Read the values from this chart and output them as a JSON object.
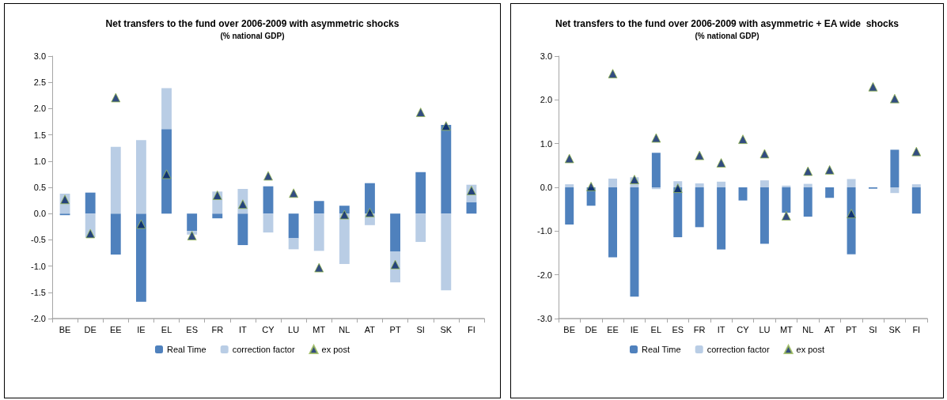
{
  "chart_data": [
    {
      "type": "bar",
      "title": "Net transfers to the fund over 2006-2009 with asymmetric shocks",
      "subtitle": "(% national GDP)",
      "categories": [
        "BE",
        "DE",
        "EE",
        "IE",
        "EL",
        "ES",
        "FR",
        "IT",
        "CY",
        "LU",
        "MT",
        "NL",
        "AT",
        "PT",
        "SI",
        "SK",
        "FI"
      ],
      "stacked": true,
      "ylim": [
        -2,
        3
      ],
      "yticks": [
        {
          "value": -2,
          "label": "-2.0"
        },
        {
          "value": -1.5,
          "label": "-1.5"
        },
        {
          "value": -1,
          "label": "-1.0"
        },
        {
          "value": -0.5,
          "label": "-0.5"
        },
        {
          "value": 0,
          "label": "0.0"
        },
        {
          "value": 0.5,
          "label": "0.5"
        },
        {
          "value": 1,
          "label": "1.0"
        },
        {
          "value": 1.5,
          "label": "1.5"
        },
        {
          "value": 2,
          "label": "2.0"
        },
        {
          "value": 2.5,
          "label": "2.5"
        },
        {
          "value": 3,
          "label": "3.0"
        }
      ],
      "grid": false,
      "legend": "bottom",
      "marker": "triangle",
      "series": [
        {
          "name": "Real Time",
          "color": "#4f81bd",
          "values": [
            -0.03,
            0.4,
            -0.78,
            -1.68,
            1.61,
            -0.33,
            -0.09,
            -0.6,
            0.52,
            -0.47,
            0.24,
            0.15,
            0.58,
            -0.72,
            0.79,
            1.69,
            0.22
          ]
        },
        {
          "name": "correction factor",
          "color": "#b9cde5",
          "values": [
            0.38,
            -0.45,
            1.27,
            1.4,
            0.78,
            -0.07,
            0.42,
            0.47,
            -0.36,
            -0.21,
            -0.71,
            -0.96,
            -0.22,
            -0.59,
            -0.54,
            -1.46,
            0.33
          ]
        },
        {
          "name": "ex post",
          "type": "scatter",
          "color": "#002060",
          "values": [
            0.27,
            -0.38,
            2.21,
            -0.2,
            0.75,
            -0.42,
            0.35,
            0.18,
            0.72,
            0.39,
            -1.03,
            -0.02,
            0.02,
            -0.97,
            1.93,
            1.67,
            0.44
          ]
        }
      ]
    },
    {
      "type": "bar",
      "title": "Net transfers to the fund over 2006-2009 with asymmetric + EA wide  shocks",
      "subtitle": "(% national GDP)",
      "categories": [
        "BE",
        "DE",
        "EE",
        "IE",
        "EL",
        "ES",
        "FR",
        "IT",
        "CY",
        "LU",
        "MT",
        "NL",
        "AT",
        "PT",
        "SI",
        "SK",
        "FI"
      ],
      "stacked": true,
      "ylim": [
        -3,
        3
      ],
      "yticks": [
        {
          "value": -3,
          "label": "-3.0"
        },
        {
          "value": -2,
          "label": "-2.0"
        },
        {
          "value": -1,
          "label": "-1.0"
        },
        {
          "value": 0,
          "label": "0.0"
        },
        {
          "value": 1,
          "label": "1.0"
        },
        {
          "value": 2,
          "label": "2.0"
        },
        {
          "value": 3,
          "label": "3.0"
        }
      ],
      "grid": false,
      "legend": "bottom",
      "marker": "triangle",
      "series": [
        {
          "name": "Real Time",
          "color": "#4f81bd",
          "values": [
            -0.85,
            -0.42,
            -1.6,
            -2.5,
            0.79,
            -1.14,
            -0.91,
            -1.42,
            -0.3,
            -1.29,
            -0.58,
            -0.67,
            -0.24,
            -1.53,
            -0.03,
            0.86,
            -0.6
          ]
        },
        {
          "name": "correction factor",
          "color": "#b9cde5",
          "values": [
            0.07,
            null,
            0.2,
            0.23,
            -0.04,
            0.14,
            0.09,
            0.13,
            null,
            0.16,
            0.04,
            0.08,
            null,
            0.19,
            null,
            -0.13,
            0.07
          ]
        },
        {
          "name": "ex post",
          "type": "scatter",
          "color": "#002060",
          "values": [
            0.66,
            0.02,
            2.6,
            0.18,
            1.13,
            -0.02,
            0.73,
            0.56,
            1.1,
            0.77,
            -0.65,
            0.37,
            0.4,
            -0.6,
            2.3,
            2.03,
            0.82
          ]
        }
      ]
    }
  ]
}
